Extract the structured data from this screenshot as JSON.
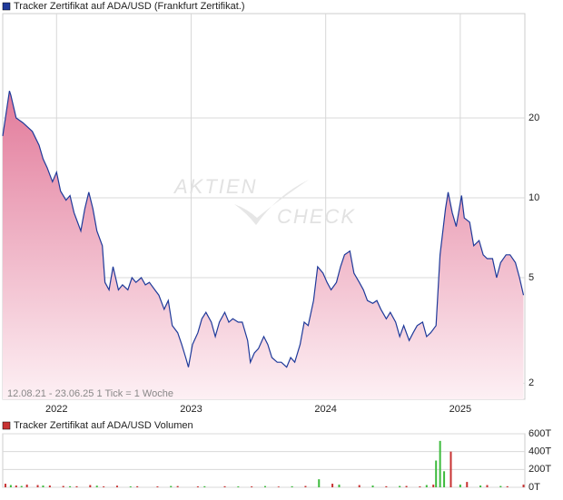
{
  "chart_data": [
    {
      "type": "line",
      "title": "Tracker Zertifikat auf ADA/USD  (Frankfurt Zertifikat.)",
      "subtitle": "12.08.21 - 23.06.25   1 Tick = 1 Woche",
      "watermark": [
        "AKTIEN",
        "CHECK"
      ],
      "log_scale": true,
      "grid": true,
      "color": "#1f3a9a",
      "fill_top": "#e27a9a",
      "fill_bottom": "#fdf0f4",
      "x": [
        2021.6,
        2021.65,
        2021.66,
        2021.7,
        2021.75,
        2021.82,
        2021.87,
        2021.9,
        2021.93,
        2021.97,
        2022.0,
        2022.03,
        2022.07,
        2022.1,
        2022.13,
        2022.18,
        2022.21,
        2022.24,
        2022.27,
        2022.3,
        2022.34,
        2022.36,
        2022.39,
        2022.42,
        2022.46,
        2022.49,
        2022.53,
        2022.56,
        2022.59,
        2022.63,
        2022.66,
        2022.69,
        2022.73,
        2022.76,
        2022.8,
        2022.83,
        2022.86,
        2022.9,
        2022.93,
        2022.96,
        2022.98,
        2023.01,
        2023.05,
        2023.08,
        2023.11,
        2023.15,
        2023.18,
        2023.21,
        2023.25,
        2023.28,
        2023.31,
        2023.35,
        2023.38,
        2023.42,
        2023.44,
        2023.47,
        2023.5,
        2023.54,
        2023.57,
        2023.6,
        2023.64,
        2023.67,
        2023.71,
        2023.74,
        2023.77,
        2023.81,
        2023.84,
        2023.87,
        2023.91,
        2023.94,
        2023.98,
        2024.01,
        2024.04,
        2024.08,
        2024.11,
        2024.14,
        2024.18,
        2024.21,
        2024.25,
        2024.28,
        2024.31,
        2024.35,
        2024.38,
        2024.41,
        2024.45,
        2024.48,
        2024.52,
        2024.55,
        2024.58,
        2024.62,
        2024.65,
        2024.68,
        2024.72,
        2024.75,
        2024.78,
        2024.82,
        2024.85,
        2024.89,
        2024.91,
        2024.94,
        2024.97,
        2025.01,
        2025.03,
        2025.07,
        2025.1,
        2025.14,
        2025.17,
        2025.2,
        2025.24,
        2025.27,
        2025.3,
        2025.34,
        2025.37,
        2025.41,
        2025.44,
        2025.47
      ],
      "values": [
        17.1,
        25.3,
        24.4,
        20,
        19.2,
        17.8,
        15.8,
        14.0,
        13.0,
        11.5,
        12.5,
        10.6,
        9.8,
        10.2,
        8.8,
        7.5,
        9.1,
        10.5,
        9.1,
        7.5,
        6.6,
        4.8,
        4.5,
        5.5,
        4.5,
        4.7,
        4.5,
        5.0,
        4.8,
        5.0,
        4.7,
        4.8,
        4.5,
        4.3,
        3.8,
        4.1,
        3.3,
        3.1,
        2.8,
        2.5,
        2.3,
        2.8,
        3.1,
        3.5,
        3.7,
        3.4,
        3.0,
        3.4,
        3.7,
        3.4,
        3.5,
        3.4,
        3.4,
        2.9,
        2.4,
        2.6,
        2.7,
        3.0,
        2.8,
        2.5,
        2.4,
        2.4,
        2.3,
        2.5,
        2.4,
        2.8,
        3.4,
        3.3,
        4.1,
        5.5,
        5.2,
        4.8,
        4.5,
        4.8,
        5.5,
        6.1,
        6.3,
        5.2,
        4.8,
        4.5,
        4.1,
        4.0,
        4.1,
        3.8,
        3.5,
        3.7,
        3.4,
        3.0,
        3.3,
        2.9,
        3.1,
        3.3,
        3.4,
        3.0,
        3.1,
        3.3,
        6.1,
        9.1,
        10.5,
        8.8,
        7.8,
        10.2,
        8.4,
        8.1,
        6.6,
        6.9,
        6.1,
        5.9,
        5.9,
        5.0,
        5.7,
        6.1,
        6.1,
        5.7,
        5.0,
        4.3
      ],
      "xlim": [
        2021.6,
        2025.48
      ],
      "xticks": [
        2022,
        2023,
        2024,
        2025
      ],
      "ylim": [
        1.74,
        49.5
      ],
      "yticks": [
        2,
        5,
        10,
        20
      ]
    },
    {
      "type": "bar",
      "title": "Tracker Zertifikat auf ADA/USD  Volumen",
      "grid": true,
      "up": {
        "color": "#3dbb3d",
        "x": [
          2021.66,
          2021.74,
          2021.9,
          2022.1,
          2022.3,
          2022.55,
          2022.85,
          2023.1,
          2023.35,
          2023.55,
          2023.75,
          2023.95,
          2024.1,
          2024.35,
          2024.55,
          2024.75,
          2024.82,
          2024.85,
          2024.88,
          2025.0,
          2025.15,
          2025.3
        ],
        "values": [
          25000,
          15000,
          20000,
          12000,
          18000,
          10000,
          15000,
          12000,
          10000,
          14000,
          12000,
          90000,
          30000,
          20000,
          15000,
          25000,
          300000,
          520000,
          180000,
          30000,
          20000,
          15000
        ]
      },
      "down": {
        "color": "#c83232",
        "x": [
          2021.62,
          2021.7,
          2021.78,
          2021.86,
          2021.95,
          2022.05,
          2022.15,
          2022.25,
          2022.35,
          2022.45,
          2022.6,
          2022.75,
          2022.9,
          2023.05,
          2023.25,
          2023.45,
          2023.65,
          2023.85,
          2024.05,
          2024.25,
          2024.45,
          2024.6,
          2024.7,
          2024.8,
          2024.93,
          2025.05,
          2025.2,
          2025.35,
          2025.47
        ],
        "values": [
          40000,
          20000,
          30000,
          25000,
          20000,
          15000,
          12000,
          25000,
          10000,
          18000,
          12000,
          10000,
          14000,
          10000,
          12000,
          10000,
          8000,
          15000,
          40000,
          25000,
          12000,
          15000,
          10000,
          30000,
          400000,
          60000,
          25000,
          12000,
          30000
        ]
      },
      "xlim": [
        2021.6,
        2025.48
      ],
      "ylim": [
        0,
        600000
      ],
      "yticks": [
        {
          "value": 0,
          "label": "0T"
        },
        {
          "value": 200000,
          "label": "200T"
        },
        {
          "value": 400000,
          "label": "400T"
        },
        {
          "value": 600000,
          "label": "600T"
        }
      ]
    }
  ]
}
